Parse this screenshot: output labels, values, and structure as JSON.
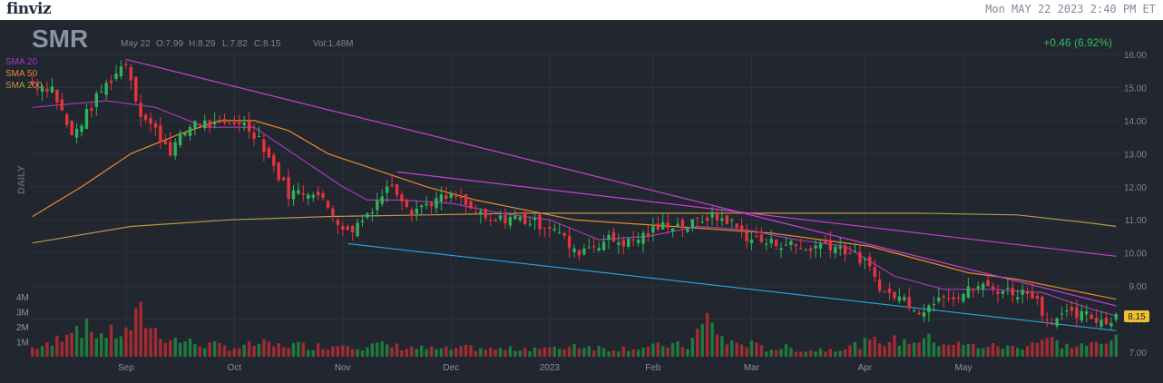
{
  "header": {
    "logo": "finviz",
    "datetime": "Mon MAY 22 2023 2:40 PM ET"
  },
  "quote": {
    "ticker": "SMR",
    "date": "May 22",
    "open": "O:7.99",
    "high": "H:8.29",
    "low": "L:7.82",
    "close": "C:8.15",
    "volume": "Vol:1.48M",
    "change": "+0.46 (6.92%)",
    "last": "8.15"
  },
  "colors": {
    "background": "#22262f",
    "up": "#2fb35a",
    "down": "#e5343f",
    "sma20": "#9c3fb5",
    "sma50": "#e88c2c",
    "sma200": "#b89a42",
    "trend_upper": "#c83fd8",
    "trend_lower": "#2aa5e8",
    "last_price": "#f0c030"
  },
  "side_label": "DAILY",
  "chart_data": {
    "type": "candlestick",
    "price_axis": {
      "ticks": [
        "16.00",
        "15.00",
        "14.00",
        "13.00",
        "12.00",
        "11.00",
        "10.00",
        "9.00",
        "8.00",
        "7.00"
      ],
      "ylim": [
        7.0,
        16.0
      ]
    },
    "volume_axis": {
      "ticks": [
        "4M",
        "3M",
        "2M",
        "1M"
      ]
    },
    "x_ticks": [
      "Sep",
      "Oct",
      "Nov",
      "Dec",
      "2023",
      "Feb",
      "Mar",
      "Apr",
      "May"
    ],
    "legend": [
      {
        "name": "SMA 20",
        "color": "#9c3fb5"
      },
      {
        "name": "SMA 50",
        "color": "#e88c2c"
      },
      {
        "name": "SMA 200",
        "color": "#b89a42"
      }
    ],
    "anchors": [
      [
        0,
        15.1,
        0.6
      ],
      [
        4,
        15.0,
        0.8
      ],
      [
        8,
        13.5,
        2.2
      ],
      [
        14,
        14.9,
        1.5
      ],
      [
        19,
        15.8,
        1.6
      ],
      [
        22,
        14.2,
        2.8
      ],
      [
        25,
        13.7,
        1.7
      ],
      [
        28,
        13.1,
        1.2
      ],
      [
        33,
        14.0,
        0.9
      ],
      [
        38,
        13.8,
        0.7
      ],
      [
        42,
        14.0,
        0.6
      ],
      [
        46,
        13.5,
        0.9
      ],
      [
        49,
        12.6,
        0.7
      ],
      [
        52,
        11.8,
        0.8
      ],
      [
        57,
        11.9,
        0.7
      ],
      [
        61,
        11.2,
        0.7
      ],
      [
        64,
        10.6,
        1.0
      ],
      [
        67,
        11.0,
        0.6
      ],
      [
        70,
        11.6,
        0.8
      ],
      [
        73,
        12.1,
        0.7
      ],
      [
        77,
        11.3,
        0.6
      ],
      [
        82,
        11.6,
        0.5
      ],
      [
        86,
        11.7,
        0.5
      ],
      [
        89,
        11.3,
        0.6
      ],
      [
        93,
        10.9,
        0.5
      ],
      [
        97,
        11.1,
        0.5
      ],
      [
        102,
        10.9,
        0.6
      ],
      [
        106,
        10.8,
        0.5
      ],
      [
        110,
        10.0,
        0.8
      ],
      [
        113,
        10.2,
        0.7
      ],
      [
        117,
        10.4,
        0.5
      ],
      [
        121,
        10.3,
        0.6
      ],
      [
        125,
        10.6,
        0.6
      ],
      [
        129,
        10.9,
        0.8
      ],
      [
        133,
        10.8,
        0.7
      ],
      [
        137,
        11.1,
        2.5
      ],
      [
        141,
        11.0,
        0.9
      ],
      [
        145,
        10.5,
        0.9
      ],
      [
        149,
        10.3,
        0.5
      ],
      [
        153,
        10.3,
        0.6
      ],
      [
        157,
        10.1,
        0.4
      ],
      [
        161,
        10.3,
        0.5
      ],
      [
        165,
        10.1,
        0.6
      ],
      [
        169,
        9.7,
        0.9
      ],
      [
        173,
        8.8,
        1.1
      ],
      [
        177,
        8.6,
        1.0
      ],
      [
        181,
        8.2,
        1.2
      ],
      [
        184,
        8.8,
        1.0
      ],
      [
        188,
        8.7,
        0.8
      ],
      [
        192,
        9.0,
        0.7
      ],
      [
        196,
        8.9,
        0.7
      ],
      [
        200,
        8.8,
        0.6
      ],
      [
        203,
        8.8,
        1.0
      ],
      [
        206,
        8.0,
        1.2
      ],
      [
        210,
        8.1,
        0.7
      ],
      [
        214,
        8.1,
        0.8
      ],
      [
        218,
        7.9,
        0.8
      ],
      [
        220,
        8.15,
        1.48
      ]
    ],
    "sma20": [
      [
        0,
        14.4
      ],
      [
        15,
        14.6
      ],
      [
        25,
        14.4
      ],
      [
        35,
        13.8
      ],
      [
        45,
        13.8
      ],
      [
        55,
        12.8
      ],
      [
        63,
        12.0
      ],
      [
        68,
        11.6
      ],
      [
        75,
        11.6
      ],
      [
        85,
        11.5
      ],
      [
        95,
        11.2
      ],
      [
        105,
        11.0
      ],
      [
        115,
        10.4
      ],
      [
        125,
        10.5
      ],
      [
        135,
        10.8
      ],
      [
        145,
        10.7
      ],
      [
        155,
        10.4
      ],
      [
        165,
        10.2
      ],
      [
        175,
        9.3
      ],
      [
        185,
        8.9
      ],
      [
        195,
        8.9
      ],
      [
        205,
        8.8
      ],
      [
        215,
        8.3
      ],
      [
        220,
        8.1
      ]
    ],
    "sma50": [
      [
        0,
        11.1
      ],
      [
        10,
        12.0
      ],
      [
        20,
        13.0
      ],
      [
        30,
        13.6
      ],
      [
        38,
        14.0
      ],
      [
        45,
        14.0
      ],
      [
        52,
        13.7
      ],
      [
        60,
        13.0
      ],
      [
        70,
        12.5
      ],
      [
        80,
        12.0
      ],
      [
        90,
        11.6
      ],
      [
        100,
        11.3
      ],
      [
        110,
        11.0
      ],
      [
        120,
        10.9
      ],
      [
        130,
        10.8
      ],
      [
        140,
        10.7
      ],
      [
        150,
        10.6
      ],
      [
        160,
        10.4
      ],
      [
        170,
        10.2
      ],
      [
        180,
        9.8
      ],
      [
        190,
        9.4
      ],
      [
        200,
        9.2
      ],
      [
        210,
        8.9
      ],
      [
        220,
        8.6
      ]
    ],
    "sma200": [
      [
        0,
        10.3
      ],
      [
        20,
        10.8
      ],
      [
        40,
        11.0
      ],
      [
        60,
        11.1
      ],
      [
        80,
        11.15
      ],
      [
        100,
        11.2
      ],
      [
        120,
        11.2
      ],
      [
        140,
        11.2
      ],
      [
        160,
        11.2
      ],
      [
        180,
        11.2
      ],
      [
        200,
        11.15
      ],
      [
        215,
        10.9
      ],
      [
        220,
        10.8
      ]
    ],
    "trendlines": [
      {
        "color": "#c83fd8",
        "from": [
          19,
          15.85
        ],
        "to": [
          220,
          8.4
        ]
      },
      {
        "color": "#c83fd8",
        "from": [
          74,
          12.45
        ],
        "to": [
          220,
          9.9
        ]
      },
      {
        "color": "#2aa5e8",
        "from": [
          64,
          10.28
        ],
        "to": [
          220,
          7.65
        ]
      }
    ]
  }
}
